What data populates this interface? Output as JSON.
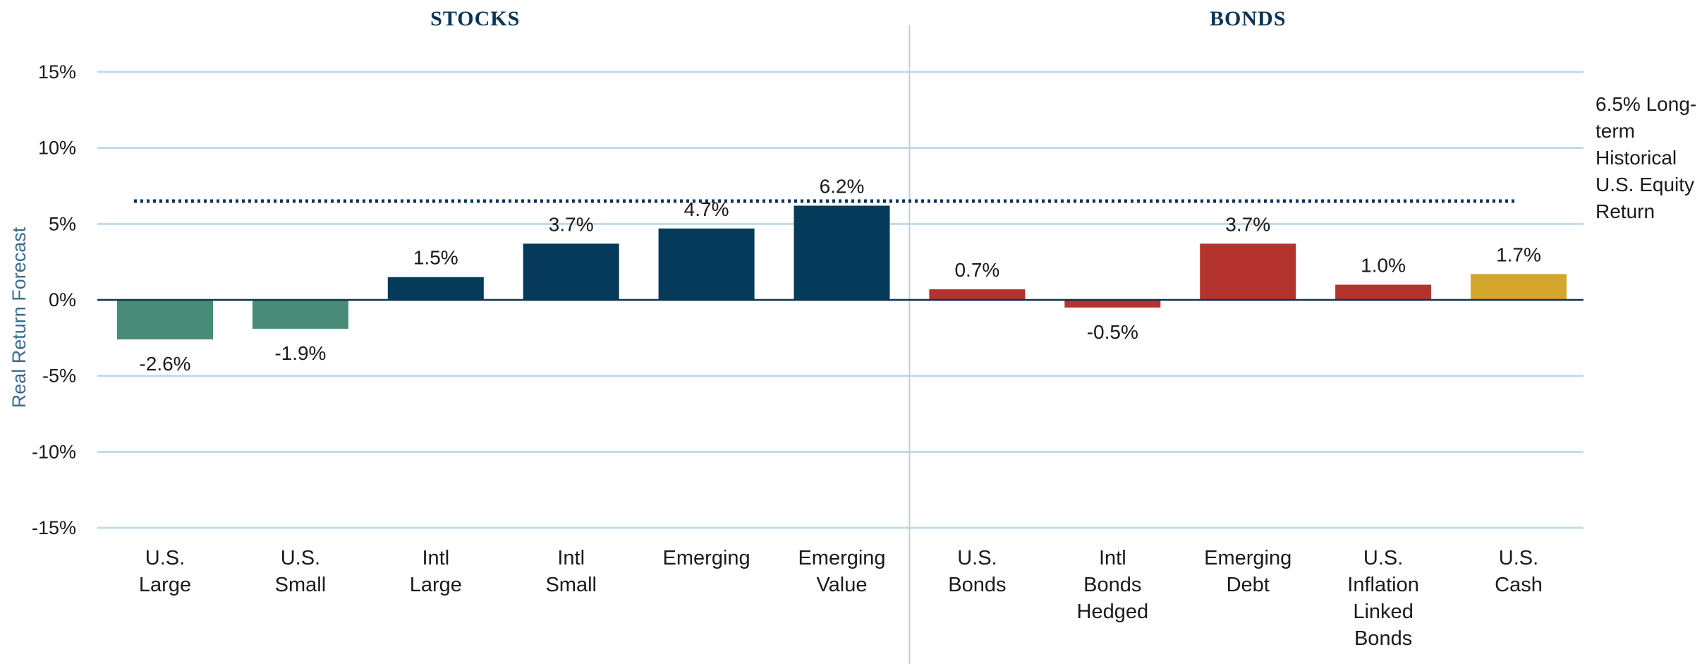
{
  "chart_data": {
    "type": "bar",
    "ylabel": "Real Return Forecast",
    "ylim": [
      -15,
      15
    ],
    "yticks": [
      15,
      10,
      5,
      0,
      -5,
      -10,
      -15
    ],
    "ytick_labels": [
      "15%",
      "10%",
      "5%",
      "0%",
      "-5%",
      "-10%",
      "-15%"
    ],
    "grid": true,
    "sections": [
      {
        "label": "STOCKS",
        "start": 0,
        "end": 5
      },
      {
        "label": "BONDS",
        "start": 6,
        "end": 10
      }
    ],
    "categories": [
      [
        "U.S.",
        "Large"
      ],
      [
        "U.S.",
        "Small"
      ],
      [
        "Intl",
        "Large"
      ],
      [
        "Intl",
        "Small"
      ],
      [
        "Emerging"
      ],
      [
        "Emerging",
        "Value"
      ],
      [
        "U.S.",
        "Bonds"
      ],
      [
        "Intl",
        "Bonds",
        "Hedged"
      ],
      [
        "Emerging",
        "Debt"
      ],
      [
        "U.S.",
        "Inflation",
        "Linked",
        "Bonds"
      ],
      [
        "U.S.",
        "Cash"
      ]
    ],
    "values": [
      -2.6,
      -1.9,
      1.5,
      3.7,
      4.7,
      6.2,
      0.7,
      -0.5,
      3.7,
      1.0,
      1.7
    ],
    "value_labels": [
      "-2.6%",
      "-1.9%",
      "1.5%",
      "3.7%",
      "4.7%",
      "6.2%",
      "0.7%",
      "-0.5%",
      "3.7%",
      "1.0%",
      "1.7%"
    ],
    "colors": [
      "#4a8a78",
      "#4a8a78",
      "#063a5a",
      "#063a5a",
      "#063a5a",
      "#063a5a",
      "#b5332e",
      "#b5332e",
      "#b5332e",
      "#b5332e",
      "#d4a72c"
    ],
    "reference_line": {
      "value": 6.5,
      "label_lines": [
        "6.5% Long-",
        "term",
        "Historical",
        "U.S. Equity",
        "Return"
      ],
      "color": "#0b3556"
    }
  }
}
